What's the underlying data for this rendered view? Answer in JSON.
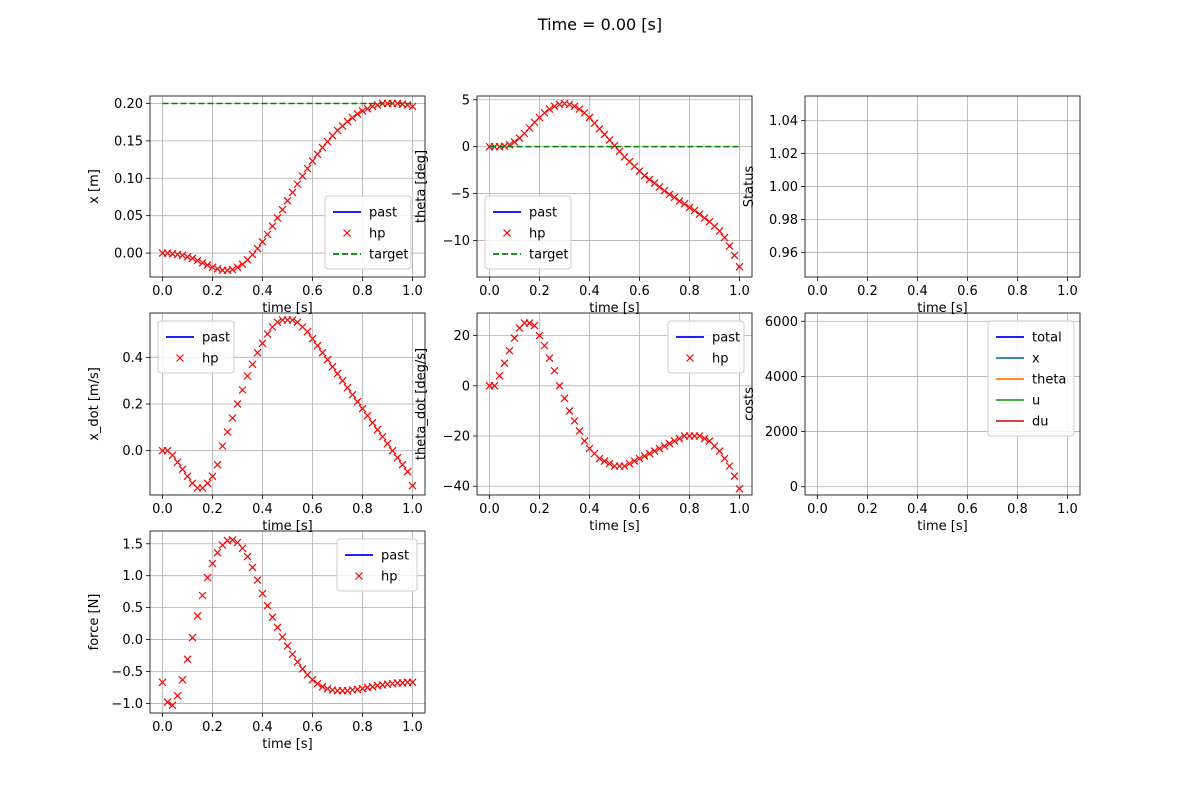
{
  "figure": {
    "title": "Time = 0.00 [s]"
  },
  "colors": {
    "past": "#0000ff",
    "hp": "#ff0000",
    "target": "#008000",
    "grid": "#b0b0b0",
    "total": "#0000ff",
    "x": "#1f77b4",
    "theta": "#ff7f0e",
    "u": "#2ca02c",
    "du": "#d62728"
  },
  "chart_data": [
    {
      "id": "x",
      "type": "line",
      "xlabel": "time [s]",
      "ylabel": "x [m]",
      "xlim": [
        -0.05,
        1.05
      ],
      "ylim": [
        -0.032,
        0.21
      ],
      "xticks": [
        "0.0",
        "0.2",
        "0.4",
        "0.6",
        "0.8",
        "1.0"
      ],
      "yticks": [
        "0.00",
        "0.05",
        "0.10",
        "0.15",
        "0.20"
      ],
      "grid": true,
      "legend_loc": "lower right",
      "legend": [
        "past",
        "hp",
        "target"
      ],
      "series": [
        {
          "name": "past",
          "style": "line",
          "color": "#0000ff",
          "x": [],
          "y": []
        },
        {
          "name": "hp",
          "style": "marker",
          "color": "#ff0000",
          "x": [
            0,
            0.02,
            0.04,
            0.06,
            0.08,
            0.1,
            0.12,
            0.14,
            0.16,
            0.18,
            0.2,
            0.22,
            0.24,
            0.26,
            0.28,
            0.3,
            0.32,
            0.34,
            0.36,
            0.38,
            0.4,
            0.42,
            0.44,
            0.46,
            0.48,
            0.5,
            0.52,
            0.54,
            0.56,
            0.58,
            0.6,
            0.62,
            0.64,
            0.66,
            0.68,
            0.7,
            0.72,
            0.74,
            0.76,
            0.78,
            0.8,
            0.82,
            0.84,
            0.86,
            0.88,
            0.9,
            0.92,
            0.94,
            0.96,
            0.98,
            1.0
          ],
          "y": [
            0.0,
            0.0,
            -0.001,
            -0.002,
            -0.003,
            -0.005,
            -0.007,
            -0.01,
            -0.013,
            -0.016,
            -0.019,
            -0.021,
            -0.023,
            -0.023,
            -0.022,
            -0.019,
            -0.015,
            -0.009,
            -0.002,
            0.006,
            0.015,
            0.025,
            0.036,
            0.047,
            0.058,
            0.07,
            0.081,
            0.092,
            0.103,
            0.113,
            0.123,
            0.132,
            0.141,
            0.149,
            0.157,
            0.164,
            0.17,
            0.176,
            0.181,
            0.186,
            0.19,
            0.193,
            0.196,
            0.198,
            0.2,
            0.2,
            0.2,
            0.2,
            0.199,
            0.198,
            0.196
          ]
        },
        {
          "name": "target",
          "style": "dashed",
          "color": "#008000",
          "x": [
            0,
            1.0
          ],
          "y": [
            0.2,
            0.2
          ]
        }
      ]
    },
    {
      "id": "theta",
      "type": "line",
      "xlabel": "time [s]",
      "ylabel": "theta [deg]",
      "xlim": [
        -0.05,
        1.05
      ],
      "ylim": [
        -13.9,
        5.4
      ],
      "xticks": [
        "0.0",
        "0.2",
        "0.4",
        "0.6",
        "0.8",
        "1.0"
      ],
      "yticks": [
        "5",
        "0",
        "−5",
        "−10"
      ],
      "ytick_values": [
        5,
        0,
        -5,
        -10
      ],
      "grid": true,
      "legend_loc": "lower left",
      "legend": [
        "past",
        "hp",
        "target"
      ],
      "series": [
        {
          "name": "past",
          "style": "line",
          "color": "#0000ff",
          "x": [],
          "y": []
        },
        {
          "name": "hp",
          "style": "marker",
          "color": "#ff0000",
          "x": [
            0,
            0.02,
            0.04,
            0.06,
            0.08,
            0.1,
            0.12,
            0.14,
            0.16,
            0.18,
            0.2,
            0.22,
            0.24,
            0.26,
            0.28,
            0.3,
            0.32,
            0.34,
            0.36,
            0.38,
            0.4,
            0.42,
            0.44,
            0.46,
            0.48,
            0.5,
            0.52,
            0.54,
            0.56,
            0.58,
            0.6,
            0.62,
            0.64,
            0.66,
            0.68,
            0.7,
            0.72,
            0.74,
            0.76,
            0.78,
            0.8,
            0.82,
            0.84,
            0.86,
            0.88,
            0.9,
            0.92,
            0.94,
            0.96,
            0.98,
            1.0
          ],
          "y": [
            0,
            0,
            0,
            0.05,
            0.2,
            0.5,
            0.9,
            1.4,
            2.0,
            2.6,
            3.1,
            3.6,
            4.0,
            4.3,
            4.5,
            4.6,
            4.5,
            4.3,
            4.0,
            3.6,
            3.1,
            2.5,
            1.9,
            1.3,
            0.7,
            0.1,
            -0.5,
            -1.1,
            -1.6,
            -2.1,
            -2.6,
            -3.1,
            -3.5,
            -3.9,
            -4.3,
            -4.7,
            -5.1,
            -5.4,
            -5.8,
            -6.1,
            -6.5,
            -6.8,
            -7.2,
            -7.6,
            -8.0,
            -8.5,
            -9.0,
            -9.7,
            -10.6,
            -11.6,
            -12.8
          ]
        },
        {
          "name": "target",
          "style": "dashed",
          "color": "#008000",
          "x": [
            0,
            1.0
          ],
          "y": [
            0,
            0
          ]
        }
      ]
    },
    {
      "id": "status",
      "type": "line",
      "xlabel": "time [s]",
      "ylabel": "Status",
      "xlim": [
        -0.05,
        1.05
      ],
      "ylim": [
        0.945,
        1.055
      ],
      "xticks": [
        "0.0",
        "0.2",
        "0.4",
        "0.6",
        "0.8",
        "1.0"
      ],
      "yticks": [
        "0.96",
        "0.98",
        "1.00",
        "1.02",
        "1.04"
      ],
      "grid": true,
      "legend": [],
      "series": []
    },
    {
      "id": "x_dot",
      "type": "line",
      "xlabel": "time [s]",
      "ylabel": "x_dot [m/s]",
      "xlim": [
        -0.05,
        1.05
      ],
      "ylim": [
        -0.19,
        0.59
      ],
      "xticks": [
        "0.0",
        "0.2",
        "0.4",
        "0.6",
        "0.8",
        "1.0"
      ],
      "yticks": [
        "0.0",
        "0.2",
        "0.4"
      ],
      "ytick_values": [
        0,
        0.2,
        0.4
      ],
      "grid": true,
      "legend_loc": "upper left",
      "legend": [
        "past",
        "hp"
      ],
      "series": [
        {
          "name": "past",
          "style": "line",
          "color": "#0000ff",
          "x": [],
          "y": []
        },
        {
          "name": "hp",
          "style": "marker",
          "color": "#ff0000",
          "x": [
            0,
            0.02,
            0.04,
            0.06,
            0.08,
            0.1,
            0.12,
            0.14,
            0.16,
            0.18,
            0.2,
            0.22,
            0.24,
            0.26,
            0.28,
            0.3,
            0.32,
            0.34,
            0.36,
            0.38,
            0.4,
            0.42,
            0.44,
            0.46,
            0.48,
            0.5,
            0.52,
            0.54,
            0.56,
            0.58,
            0.6,
            0.62,
            0.64,
            0.66,
            0.68,
            0.7,
            0.72,
            0.74,
            0.76,
            0.78,
            0.8,
            0.82,
            0.84,
            0.86,
            0.88,
            0.9,
            0.92,
            0.94,
            0.96,
            0.98,
            1.0
          ],
          "y": [
            0,
            0,
            -0.02,
            -0.05,
            -0.08,
            -0.11,
            -0.14,
            -0.16,
            -0.16,
            -0.14,
            -0.11,
            -0.06,
            0.02,
            0.08,
            0.14,
            0.2,
            0.26,
            0.32,
            0.37,
            0.42,
            0.46,
            0.5,
            0.53,
            0.55,
            0.56,
            0.56,
            0.56,
            0.55,
            0.53,
            0.51,
            0.48,
            0.45,
            0.42,
            0.39,
            0.36,
            0.33,
            0.3,
            0.27,
            0.24,
            0.21,
            0.18,
            0.15,
            0.12,
            0.09,
            0.06,
            0.03,
            0.0,
            -0.03,
            -0.06,
            -0.09,
            -0.15
          ]
        }
      ]
    },
    {
      "id": "theta_dot",
      "type": "line",
      "xlabel": "time [s]",
      "ylabel": "theta_dot [deg/s]",
      "xlim": [
        -0.05,
        1.05
      ],
      "ylim": [
        -43.5,
        29
      ],
      "xticks": [
        "0.0",
        "0.2",
        "0.4",
        "0.6",
        "0.8",
        "1.0"
      ],
      "yticks": [
        "20",
        "0",
        "−20",
        "−40"
      ],
      "ytick_values": [
        20,
        0,
        -20,
        -40
      ],
      "grid": true,
      "legend_loc": "upper right",
      "legend": [
        "past",
        "hp"
      ],
      "series": [
        {
          "name": "past",
          "style": "line",
          "color": "#0000ff",
          "x": [],
          "y": []
        },
        {
          "name": "hp",
          "style": "marker",
          "color": "#ff0000",
          "x": [
            0,
            0.02,
            0.04,
            0.06,
            0.08,
            0.1,
            0.12,
            0.14,
            0.16,
            0.18,
            0.2,
            0.22,
            0.24,
            0.26,
            0.28,
            0.3,
            0.32,
            0.34,
            0.36,
            0.38,
            0.4,
            0.42,
            0.44,
            0.46,
            0.48,
            0.5,
            0.52,
            0.54,
            0.56,
            0.58,
            0.6,
            0.62,
            0.64,
            0.66,
            0.68,
            0.7,
            0.72,
            0.74,
            0.76,
            0.78,
            0.8,
            0.82,
            0.84,
            0.86,
            0.88,
            0.9,
            0.92,
            0.94,
            0.96,
            0.98,
            1.0
          ],
          "y": [
            0,
            0,
            4,
            9,
            14,
            19,
            23,
            25,
            25,
            24,
            20,
            16,
            11,
            6,
            0,
            -5,
            -10,
            -14,
            -18,
            -22,
            -25,
            -27,
            -29,
            -30,
            -31,
            -32,
            -32,
            -32,
            -31,
            -30,
            -29,
            -28,
            -27,
            -26,
            -25,
            -24,
            -23,
            -22,
            -21,
            -20,
            -20,
            -20,
            -20,
            -21,
            -22,
            -24,
            -26,
            -29,
            -32,
            -36,
            -41
          ]
        }
      ]
    },
    {
      "id": "costs",
      "type": "line",
      "xlabel": "time [s]",
      "ylabel": "costs",
      "xlim": [
        -0.05,
        1.05
      ],
      "ylim": [
        -300,
        6300
      ],
      "xticks": [
        "0.0",
        "0.2",
        "0.4",
        "0.6",
        "0.8",
        "1.0"
      ],
      "yticks": [
        "0",
        "2000",
        "4000",
        "6000"
      ],
      "ytick_values": [
        0,
        2000,
        4000,
        6000
      ],
      "grid": true,
      "legend_loc": "upper right",
      "legend": [
        "total",
        "x",
        "theta",
        "u",
        "du"
      ],
      "series": [
        {
          "name": "total",
          "style": "line",
          "color": "#0000ff",
          "x": [],
          "y": []
        },
        {
          "name": "x",
          "style": "line",
          "color": "#1f77b4",
          "x": [],
          "y": []
        },
        {
          "name": "theta",
          "style": "line",
          "color": "#ff7f0e",
          "x": [],
          "y": []
        },
        {
          "name": "u",
          "style": "line",
          "color": "#2ca02c",
          "x": [],
          "y": []
        },
        {
          "name": "du",
          "style": "line",
          "color": "#d62728",
          "x": [],
          "y": []
        }
      ]
    },
    {
      "id": "force",
      "type": "line",
      "xlabel": "time [s]",
      "ylabel": "force [N]",
      "xlim": [
        -0.05,
        1.05
      ],
      "ylim": [
        -1.15,
        1.7
      ],
      "xticks": [
        "0.0",
        "0.2",
        "0.4",
        "0.6",
        "0.8",
        "1.0"
      ],
      "yticks": [
        "1.5",
        "1.0",
        "0.5",
        "0.0",
        "−0.5",
        "−1.0"
      ],
      "ytick_values": [
        1.5,
        1.0,
        0.5,
        0.0,
        -0.5,
        -1.0
      ],
      "grid": true,
      "legend_loc": "upper right",
      "legend": [
        "past",
        "hp"
      ],
      "series": [
        {
          "name": "past",
          "style": "line",
          "color": "#0000ff",
          "x": [],
          "y": []
        },
        {
          "name": "hp",
          "style": "marker",
          "color": "#ff0000",
          "x": [
            0,
            0.02,
            0.04,
            0.06,
            0.08,
            0.1,
            0.12,
            0.14,
            0.16,
            0.18,
            0.2,
            0.22,
            0.24,
            0.26,
            0.28,
            0.3,
            0.32,
            0.34,
            0.36,
            0.38,
            0.4,
            0.42,
            0.44,
            0.46,
            0.48,
            0.5,
            0.52,
            0.54,
            0.56,
            0.58,
            0.6,
            0.62,
            0.64,
            0.66,
            0.68,
            0.7,
            0.72,
            0.74,
            0.76,
            0.78,
            0.8,
            0.82,
            0.84,
            0.86,
            0.88,
            0.9,
            0.92,
            0.94,
            0.96,
            0.98,
            1.0
          ],
          "y": [
            -0.67,
            -0.98,
            -1.03,
            -0.88,
            -0.63,
            -0.31,
            0.03,
            0.37,
            0.69,
            0.97,
            1.19,
            1.36,
            1.48,
            1.55,
            1.56,
            1.52,
            1.43,
            1.3,
            1.13,
            0.93,
            0.72,
            0.53,
            0.35,
            0.19,
            0.04,
            -0.1,
            -0.23,
            -0.35,
            -0.46,
            -0.55,
            -0.63,
            -0.69,
            -0.74,
            -0.77,
            -0.79,
            -0.8,
            -0.8,
            -0.8,
            -0.79,
            -0.78,
            -0.77,
            -0.75,
            -0.74,
            -0.72,
            -0.71,
            -0.7,
            -0.69,
            -0.68,
            -0.68,
            -0.67,
            -0.67
          ]
        }
      ]
    }
  ]
}
